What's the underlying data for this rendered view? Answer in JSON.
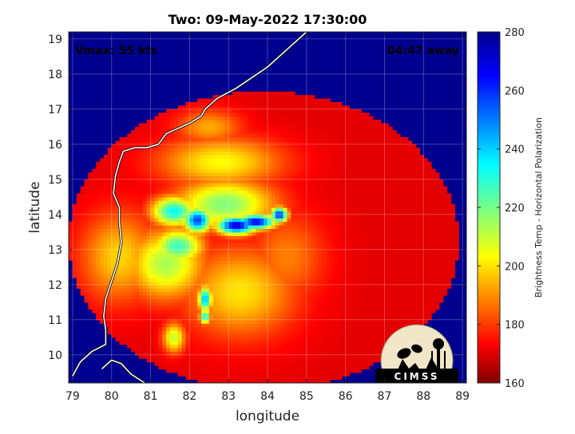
{
  "chart_data": {
    "type": "heatmap",
    "title": "Two: 09-May-2022 17:30:00",
    "xlabel": "longitude",
    "ylabel": "latitude",
    "xlim": [
      78.9,
      89.1
    ],
    "ylim": [
      9.2,
      19.2
    ],
    "x_ticks": [
      79,
      80,
      81,
      82,
      83,
      84,
      85,
      86,
      87,
      88,
      89
    ],
    "y_ticks": [
      10,
      11,
      12,
      13,
      14,
      15,
      16,
      17,
      18,
      19
    ],
    "grid": true,
    "annotations": {
      "top_left": "Vmax: 55 kts",
      "top_right": "04:47 away"
    },
    "colorbar": {
      "label": "Brightness Temp - Horizontal Polarization",
      "range": [
        160,
        280
      ],
      "ticks": [
        160,
        180,
        200,
        220,
        240,
        260,
        280
      ],
      "colormap": "jet"
    },
    "swath": {
      "shape": "circle",
      "center_lon": 83.9,
      "center_lat": 13.25,
      "radius_lon": 5.0,
      "radius_lat": 4.25,
      "background_value": 268
    },
    "features": [
      {
        "lon": 83.2,
        "lat": 13.7,
        "value": 168,
        "spread_lon": 0.35,
        "spread_lat": 0.18
      },
      {
        "lon": 83.7,
        "lat": 13.8,
        "value": 172,
        "spread_lon": 0.35,
        "spread_lat": 0.15
      },
      {
        "lon": 84.3,
        "lat": 14.0,
        "value": 178,
        "spread_lon": 0.15,
        "spread_lat": 0.15
      },
      {
        "lon": 82.2,
        "lat": 13.85,
        "value": 182,
        "spread_lon": 0.25,
        "spread_lat": 0.25
      },
      {
        "lon": 81.6,
        "lat": 14.1,
        "value": 205,
        "spread_lon": 0.4,
        "spread_lat": 0.3
      },
      {
        "lon": 82.9,
        "lat": 14.3,
        "value": 220,
        "spread_lon": 0.9,
        "spread_lat": 0.5
      },
      {
        "lon": 81.7,
        "lat": 13.1,
        "value": 212,
        "spread_lon": 0.45,
        "spread_lat": 0.35
      },
      {
        "lon": 81.4,
        "lat": 12.6,
        "value": 225,
        "spread_lon": 0.7,
        "spread_lat": 0.7
      },
      {
        "lon": 82.4,
        "lat": 11.6,
        "value": 195,
        "spread_lon": 0.12,
        "spread_lat": 0.25
      },
      {
        "lon": 82.4,
        "lat": 11.1,
        "value": 205,
        "spread_lon": 0.1,
        "spread_lat": 0.15
      },
      {
        "lon": 81.6,
        "lat": 10.5,
        "value": 228,
        "spread_lon": 0.2,
        "spread_lat": 0.3
      },
      {
        "lon": 82.8,
        "lat": 15.5,
        "value": 235,
        "spread_lon": 1.1,
        "spread_lat": 0.5
      },
      {
        "lon": 82.5,
        "lat": 16.5,
        "value": 245,
        "spread_lon": 0.6,
        "spread_lat": 0.35
      },
      {
        "lon": 80.2,
        "lat": 12.8,
        "value": 240,
        "spread_lon": 0.7,
        "spread_lat": 0.9
      },
      {
        "lon": 83.3,
        "lat": 11.8,
        "value": 238,
        "spread_lon": 1.0,
        "spread_lat": 0.9
      },
      {
        "lon": 84.5,
        "lat": 12.8,
        "value": 250,
        "spread_lon": 0.7,
        "spread_lat": 0.9
      }
    ],
    "coastline_india_east": [
      [
        85.0,
        19.2
      ],
      [
        84.7,
        18.9
      ],
      [
        84.3,
        18.5
      ],
      [
        84.0,
        18.2
      ],
      [
        83.6,
        17.9
      ],
      [
        83.2,
        17.6
      ],
      [
        82.7,
        17.3
      ],
      [
        82.4,
        17.0
      ],
      [
        82.3,
        16.8
      ],
      [
        82.0,
        16.6
      ],
      [
        81.6,
        16.4
      ],
      [
        81.4,
        16.3
      ],
      [
        81.2,
        16.0
      ],
      [
        80.9,
        15.9
      ],
      [
        80.6,
        15.9
      ],
      [
        80.3,
        15.8
      ],
      [
        80.2,
        15.5
      ],
      [
        80.1,
        15.1
      ],
      [
        80.05,
        14.6
      ],
      [
        80.2,
        14.2
      ],
      [
        80.2,
        13.8
      ],
      [
        80.25,
        13.2
      ],
      [
        80.15,
        12.6
      ],
      [
        80.0,
        12.1
      ],
      [
        79.85,
        11.6
      ],
      [
        79.8,
        11.1
      ],
      [
        79.85,
        10.7
      ],
      [
        79.85,
        10.3
      ],
      [
        79.5,
        10.1
      ],
      [
        79.2,
        9.8
      ],
      [
        79.0,
        9.4
      ]
    ],
    "coastline_sri_lanka": [
      [
        79.75,
        9.6
      ],
      [
        80.0,
        9.85
      ],
      [
        80.25,
        9.75
      ],
      [
        80.5,
        9.45
      ],
      [
        80.85,
        9.2
      ]
    ]
  }
}
